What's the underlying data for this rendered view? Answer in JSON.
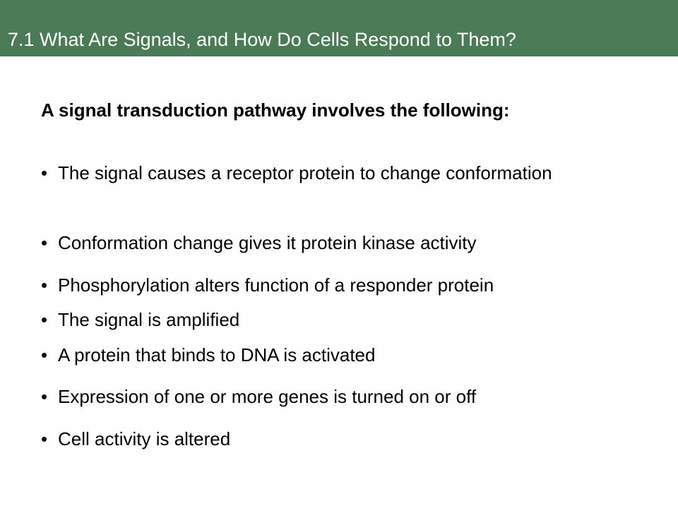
{
  "slide": {
    "title": "7.1 What Are Signals, and How Do Cells Respond to Them?",
    "lead": "A signal transduction pathway involves the following:",
    "bullet_symbol": "•",
    "bullets": [
      "The signal causes a receptor protein to change conformation",
      "Conformation change gives it protein kinase activity",
      "Phosphorylation alters function of a responder protein",
      "The signal is amplified",
      "A protein that binds to DNA is activated",
      "Expression of one or more genes is turned on or off",
      "Cell activity is altered"
    ]
  },
  "colors": {
    "title_bar": "#4b7a57",
    "title_text": "#ffffff",
    "body_text": "#000000"
  }
}
